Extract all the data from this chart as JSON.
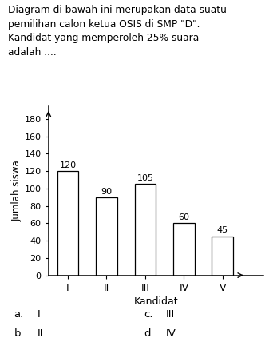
{
  "title_lines": [
    "Diagram di bawah ini merupakan data suatu",
    "pemilihan calon ketua OSIS di SMP \"D\".",
    "Kandidat yang memperoleh 25% suara",
    "adalah ...."
  ],
  "categories": [
    "I",
    "II",
    "III",
    "IV",
    "V"
  ],
  "values": [
    120,
    90,
    105,
    60,
    45
  ],
  "bar_color": "#ffffff",
  "bar_edge_color": "#000000",
  "xlabel": "Kandidat",
  "ylabel": "Jumlah siswa",
  "yticks": [
    0,
    20,
    40,
    60,
    80,
    100,
    120,
    140,
    160,
    180
  ],
  "ylim": [
    0,
    195
  ],
  "answer_options": [
    {
      "label": "a.",
      "text": "I"
    },
    {
      "label": "b.",
      "text": "II"
    },
    {
      "label": "c.",
      "text": "III"
    },
    {
      "label": "d.",
      "text": "IV"
    }
  ],
  "background_color": "#ffffff",
  "font_color": "#000000",
  "title_fontsize": 8.8,
  "axis_fontsize": 8.5,
  "tick_fontsize": 8,
  "label_fontsize": 9,
  "ans_fontsize": 9.5
}
